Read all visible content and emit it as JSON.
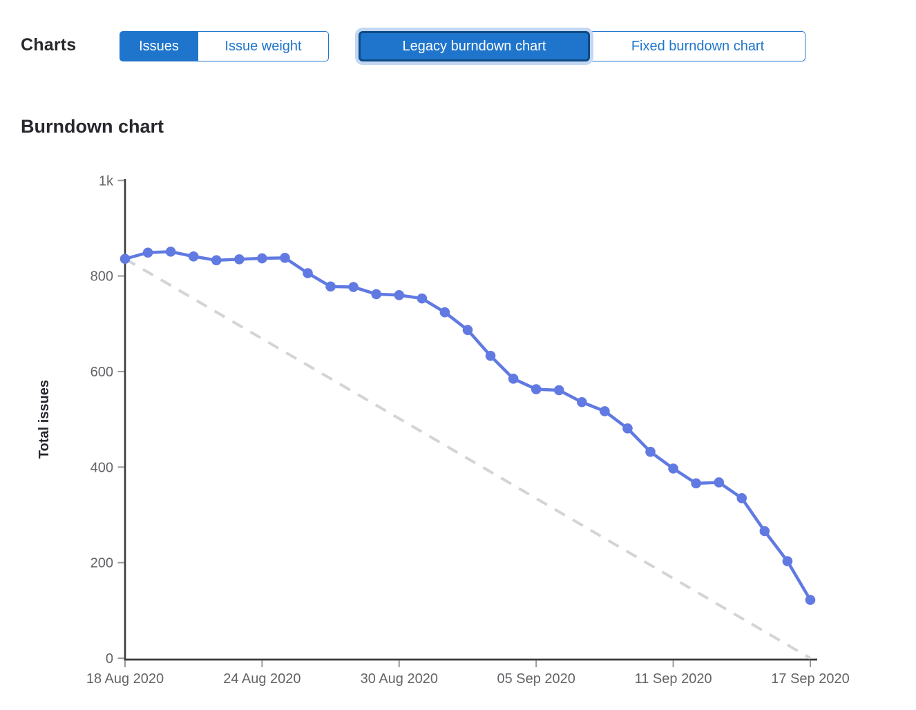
{
  "page": {
    "charts_label": "Charts"
  },
  "toolbar": {
    "metric_toggle": {
      "options": [
        {
          "label": "Issues",
          "selected": true
        },
        {
          "label": "Issue weight",
          "selected": false
        }
      ]
    },
    "chart_type_toggle": {
      "options": [
        {
          "label": "Legacy burndown chart",
          "selected": true,
          "focused": true
        },
        {
          "label": "Fixed burndown chart",
          "selected": false
        }
      ]
    }
  },
  "section": {
    "title": "Burndown chart"
  },
  "chart_data": {
    "type": "line",
    "title": "Burndown chart",
    "xlabel": "",
    "ylabel": "Total issues",
    "ylim": [
      0,
      1000
    ],
    "yticks": [
      0,
      200,
      400,
      600,
      800,
      1000
    ],
    "ytick_labels": [
      "0",
      "200",
      "400",
      "600",
      "800",
      "1k"
    ],
    "xticks_days": [
      0,
      6,
      12,
      18,
      24,
      30
    ],
    "xtick_labels": [
      "18 Aug 2020",
      "24 Aug 2020",
      "30 Aug 2020",
      "05 Sep 2020",
      "11 Sep 2020",
      "17 Sep 2020"
    ],
    "x_range_days": [
      0,
      30
    ],
    "grid": false,
    "legend": "none",
    "series": [
      {
        "name": "Total issues",
        "style": "solid",
        "color": "#617ae2",
        "show_points": true,
        "x_days": [
          0,
          1,
          2,
          3,
          4,
          5,
          6,
          7,
          8,
          9,
          10,
          11,
          12,
          13,
          14,
          15,
          16,
          17,
          18,
          19,
          20,
          21,
          22,
          23,
          24,
          25,
          26,
          27,
          28,
          29,
          30
        ],
        "values": [
          836,
          849,
          851,
          841,
          833,
          835,
          837,
          838,
          806,
          778,
          777,
          762,
          760,
          753,
          724,
          687,
          633,
          585,
          563,
          561,
          536,
          517,
          481,
          432,
          397,
          366,
          368,
          335,
          266,
          203,
          122
        ]
      },
      {
        "name": "Guideline",
        "style": "dashed",
        "color": "#d4d4d4",
        "show_points": false,
        "x_days": [
          0,
          30
        ],
        "values": [
          836,
          0
        ]
      }
    ]
  },
  "colors": {
    "accent_blue": "#1f75cb",
    "selected_border": "#0d4a85",
    "focus_ring": "#c2d7f3",
    "line_blue": "#617ae2",
    "guideline_gray": "#d4d4d4",
    "axis": "#3a3a3a",
    "tick_mark": "#9a9a9a",
    "tick_label": "#646468",
    "heading": "#28272d"
  }
}
